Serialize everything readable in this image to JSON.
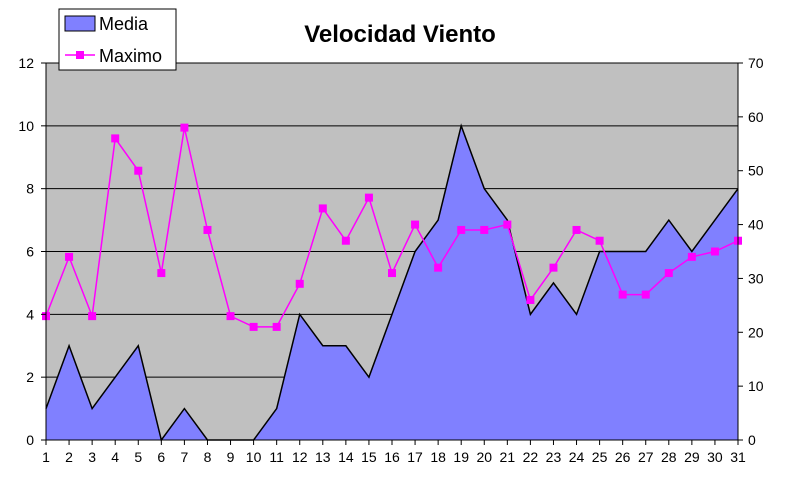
{
  "chart_data": {
    "type": "area",
    "title": "Velocidad Viento",
    "x": [
      1,
      2,
      3,
      4,
      5,
      6,
      7,
      8,
      9,
      10,
      11,
      12,
      13,
      14,
      15,
      16,
      17,
      18,
      19,
      20,
      21,
      22,
      23,
      24,
      25,
      26,
      27,
      28,
      29,
      30,
      31
    ],
    "xlim": [
      1,
      31
    ],
    "series": [
      {
        "name": "Media",
        "kind": "area",
        "axis": "left",
        "color": "#8080ff",
        "values": [
          1,
          3,
          1,
          2,
          3,
          0,
          1,
          0,
          0,
          0,
          1,
          4,
          3,
          3,
          2,
          4,
          6,
          7,
          10,
          8,
          7,
          4,
          5,
          4,
          6,
          6,
          6,
          7,
          6,
          7,
          8
        ]
      },
      {
        "name": "Maximo",
        "kind": "line",
        "axis": "right",
        "color": "#ff00ff",
        "marker": "square",
        "values": [
          23,
          34,
          23,
          56,
          50,
          31,
          58,
          39,
          23,
          21,
          21,
          29,
          43,
          37,
          45,
          31,
          40,
          32,
          39,
          39,
          40,
          26,
          32,
          39,
          37,
          27,
          27,
          31,
          34,
          35,
          37
        ]
      }
    ],
    "y_left": {
      "min": 0,
      "max": 12,
      "ticks": [
        0,
        2,
        4,
        6,
        8,
        10,
        12
      ]
    },
    "y_right": {
      "min": 0,
      "max": 70,
      "ticks": [
        0,
        10,
        20,
        30,
        40,
        50,
        60,
        70
      ]
    },
    "plot_background": "#c0c0c0",
    "grid": true,
    "legend": {
      "placement": "top-left",
      "entries": [
        "Media",
        "Maximo"
      ]
    }
  }
}
